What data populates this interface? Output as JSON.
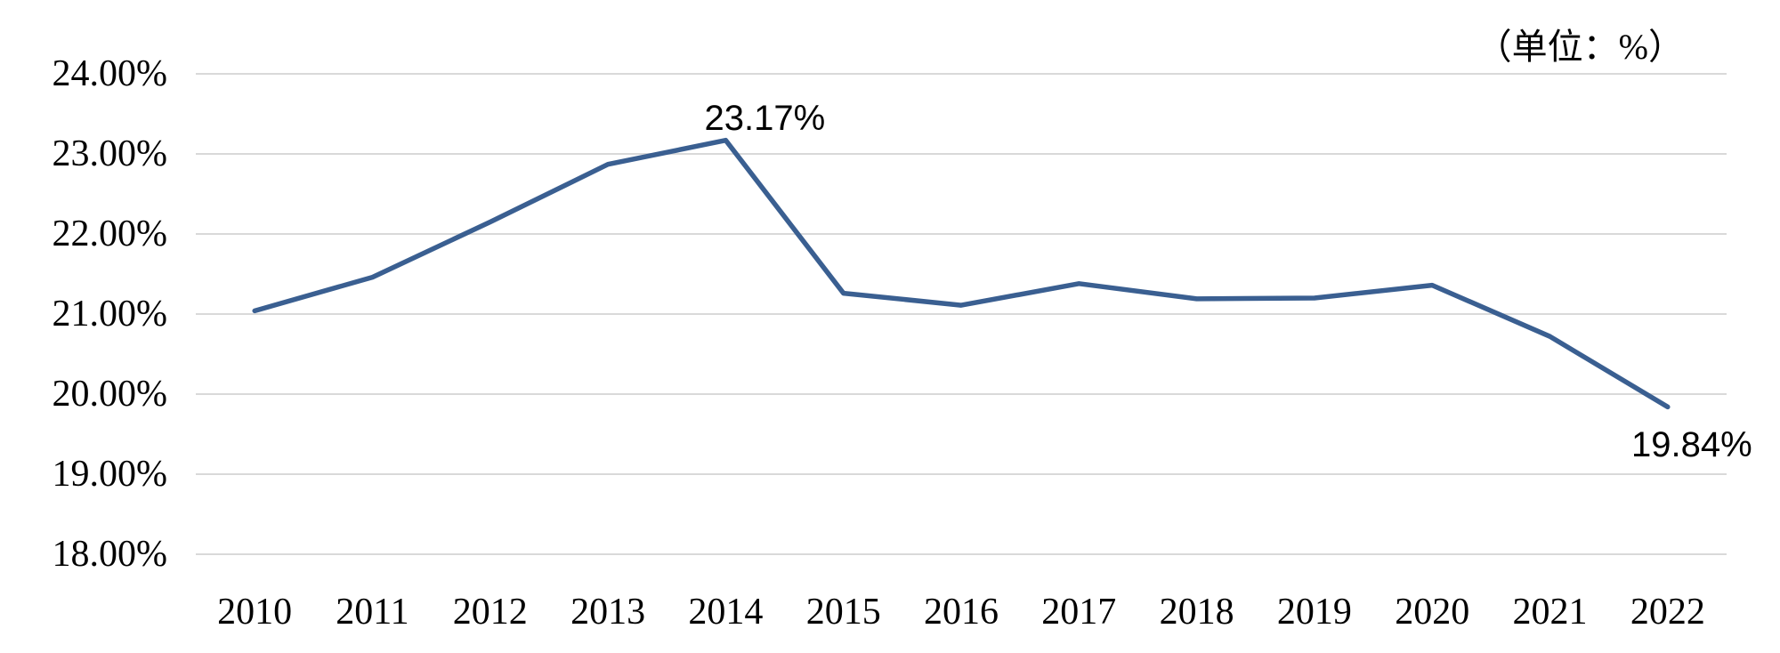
{
  "chart_data": {
    "type": "line",
    "title": "",
    "unit_label": "（单位：%）",
    "categories": [
      "2010",
      "2011",
      "2012",
      "2013",
      "2014",
      "2015",
      "2016",
      "2017",
      "2018",
      "2019",
      "2020",
      "2021",
      "2022"
    ],
    "values": [
      21.04,
      21.46,
      22.15,
      22.87,
      23.17,
      21.26,
      21.11,
      21.38,
      21.19,
      21.2,
      21.36,
      20.72,
      19.84
    ],
    "y_ticks": [
      "24.00%",
      "23.00%",
      "22.00%",
      "21.00%",
      "20.00%",
      "19.00%",
      "18.00%"
    ],
    "ylim": [
      18,
      24
    ],
    "xlabel": "",
    "ylabel": "",
    "grid": "horizontal",
    "legend": "none",
    "annotations": [
      {
        "category": "2014",
        "text": "23.17%",
        "position": "above"
      },
      {
        "category": "2022",
        "text": "19.84%",
        "position": "below"
      }
    ],
    "colors": {
      "line": "#3A5F91",
      "gridline": "#D9D9D9",
      "text": "#000000",
      "background": "#FFFFFF"
    }
  }
}
